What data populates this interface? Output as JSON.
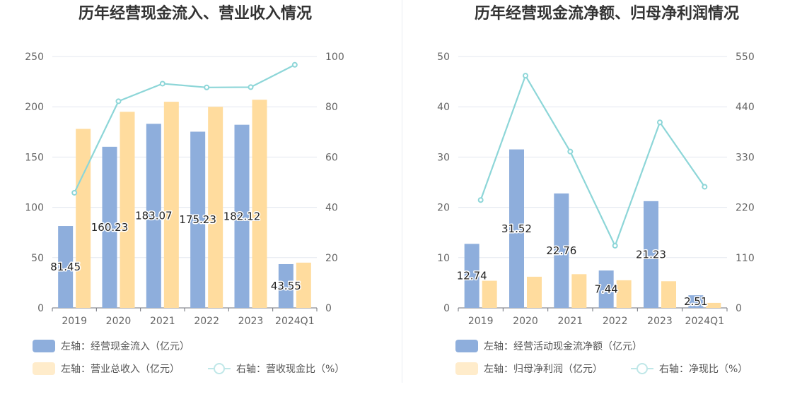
{
  "chart_data": [
    {
      "type": "bar",
      "title": "历年经营现金流入、营业收入情况",
      "categories": [
        "2019",
        "2020",
        "2021",
        "2022",
        "2023",
        "2024Q1"
      ],
      "y_left": {
        "min": 0,
        "max": 250,
        "ticks": [
          "0",
          "50",
          "100",
          "150",
          "200",
          "250"
        ]
      },
      "y_right": {
        "min": 0,
        "max": 100,
        "ticks": [
          "0",
          "20",
          "40",
          "60",
          "80",
          "100"
        ]
      },
      "series": [
        {
          "name": "左轴：经营现金流入（亿元）",
          "type": "bar",
          "axis": "left",
          "color": "#8eaedc",
          "values": [
            81.45,
            160.23,
            183.07,
            175.23,
            182.12,
            43.55
          ],
          "labels": [
            "81.45",
            "160.23",
            "183.07",
            "175.23",
            "182.12",
            "43.55"
          ]
        },
        {
          "name": "左轴：营业总收入（亿元）",
          "type": "bar",
          "axis": "left",
          "color": "#ffdc9e",
          "values": [
            178,
            195,
            205,
            200,
            207,
            45
          ]
        },
        {
          "name": "右轴：营收现金比（%）",
          "type": "line",
          "axis": "right",
          "color": "#8dd6d8",
          "values": [
            45.8,
            82.2,
            89.2,
            87.7,
            87.8,
            96.7
          ]
        }
      ],
      "grid": true,
      "legend_position": "bottom-left"
    },
    {
      "type": "bar",
      "title": "历年经营现金流净额、归母净利润情况",
      "categories": [
        "2019",
        "2020",
        "2021",
        "2022",
        "2023",
        "2024Q1"
      ],
      "y_left": {
        "min": 0,
        "max": 50,
        "ticks": [
          "0",
          "10",
          "20",
          "30",
          "40",
          "50"
        ]
      },
      "y_right": {
        "min": 0,
        "max": 550,
        "ticks": [
          "0",
          "110",
          "220",
          "330",
          "440",
          "550"
        ]
      },
      "series": [
        {
          "name": "左轴：经营活动现金流净额（亿元）",
          "type": "bar",
          "axis": "left",
          "color": "#8eaedc",
          "values": [
            12.74,
            31.52,
            22.76,
            7.44,
            21.23,
            2.51
          ],
          "labels": [
            "12.74",
            "31.52",
            "22.76",
            "7.44",
            "21.23",
            "2.51"
          ]
        },
        {
          "name": "左轴：归母净利润（亿元）",
          "type": "bar",
          "axis": "left",
          "color": "#ffdc9e",
          "values": [
            5.4,
            6.2,
            6.7,
            5.5,
            5.3,
            1.0
          ]
        },
        {
          "name": "右轴：净现比（%）",
          "type": "line",
          "axis": "right",
          "color": "#8dd6d8",
          "values": [
            236,
            508,
            342,
            136,
            406,
            265
          ]
        }
      ],
      "grid": true,
      "legend_position": "bottom-left"
    }
  ]
}
